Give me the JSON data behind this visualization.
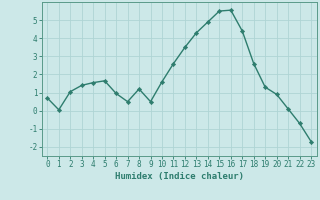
{
  "x": [
    0,
    1,
    2,
    3,
    4,
    5,
    6,
    7,
    8,
    9,
    10,
    11,
    12,
    13,
    14,
    15,
    16,
    17,
    18,
    19,
    20,
    21,
    22,
    23
  ],
  "y": [
    0.7,
    0.05,
    1.05,
    1.4,
    1.55,
    1.65,
    0.95,
    0.5,
    1.2,
    0.5,
    1.6,
    2.6,
    3.5,
    4.3,
    4.9,
    5.5,
    5.55,
    4.4,
    2.6,
    1.3,
    0.9,
    0.1,
    -0.7,
    -1.7
  ],
  "line_color": "#2e7d6e",
  "marker": "D",
  "markersize": 2.2,
  "linewidth": 1.0,
  "bg_color": "#cce8e8",
  "grid_color": "#afd4d4",
  "xlabel": "Humidex (Indice chaleur)",
  "xlim": [
    -0.5,
    23.5
  ],
  "ylim": [
    -2.5,
    6.0
  ],
  "yticks": [
    -2,
    -1,
    0,
    1,
    2,
    3,
    4,
    5
  ],
  "xticks": [
    0,
    1,
    2,
    3,
    4,
    5,
    6,
    7,
    8,
    9,
    10,
    11,
    12,
    13,
    14,
    15,
    16,
    17,
    18,
    19,
    20,
    21,
    22,
    23
  ],
  "tick_color": "#2e7d6e",
  "tick_fontsize": 5.5,
  "xlabel_fontsize": 6.5,
  "axis_color": "#5a9a8a"
}
